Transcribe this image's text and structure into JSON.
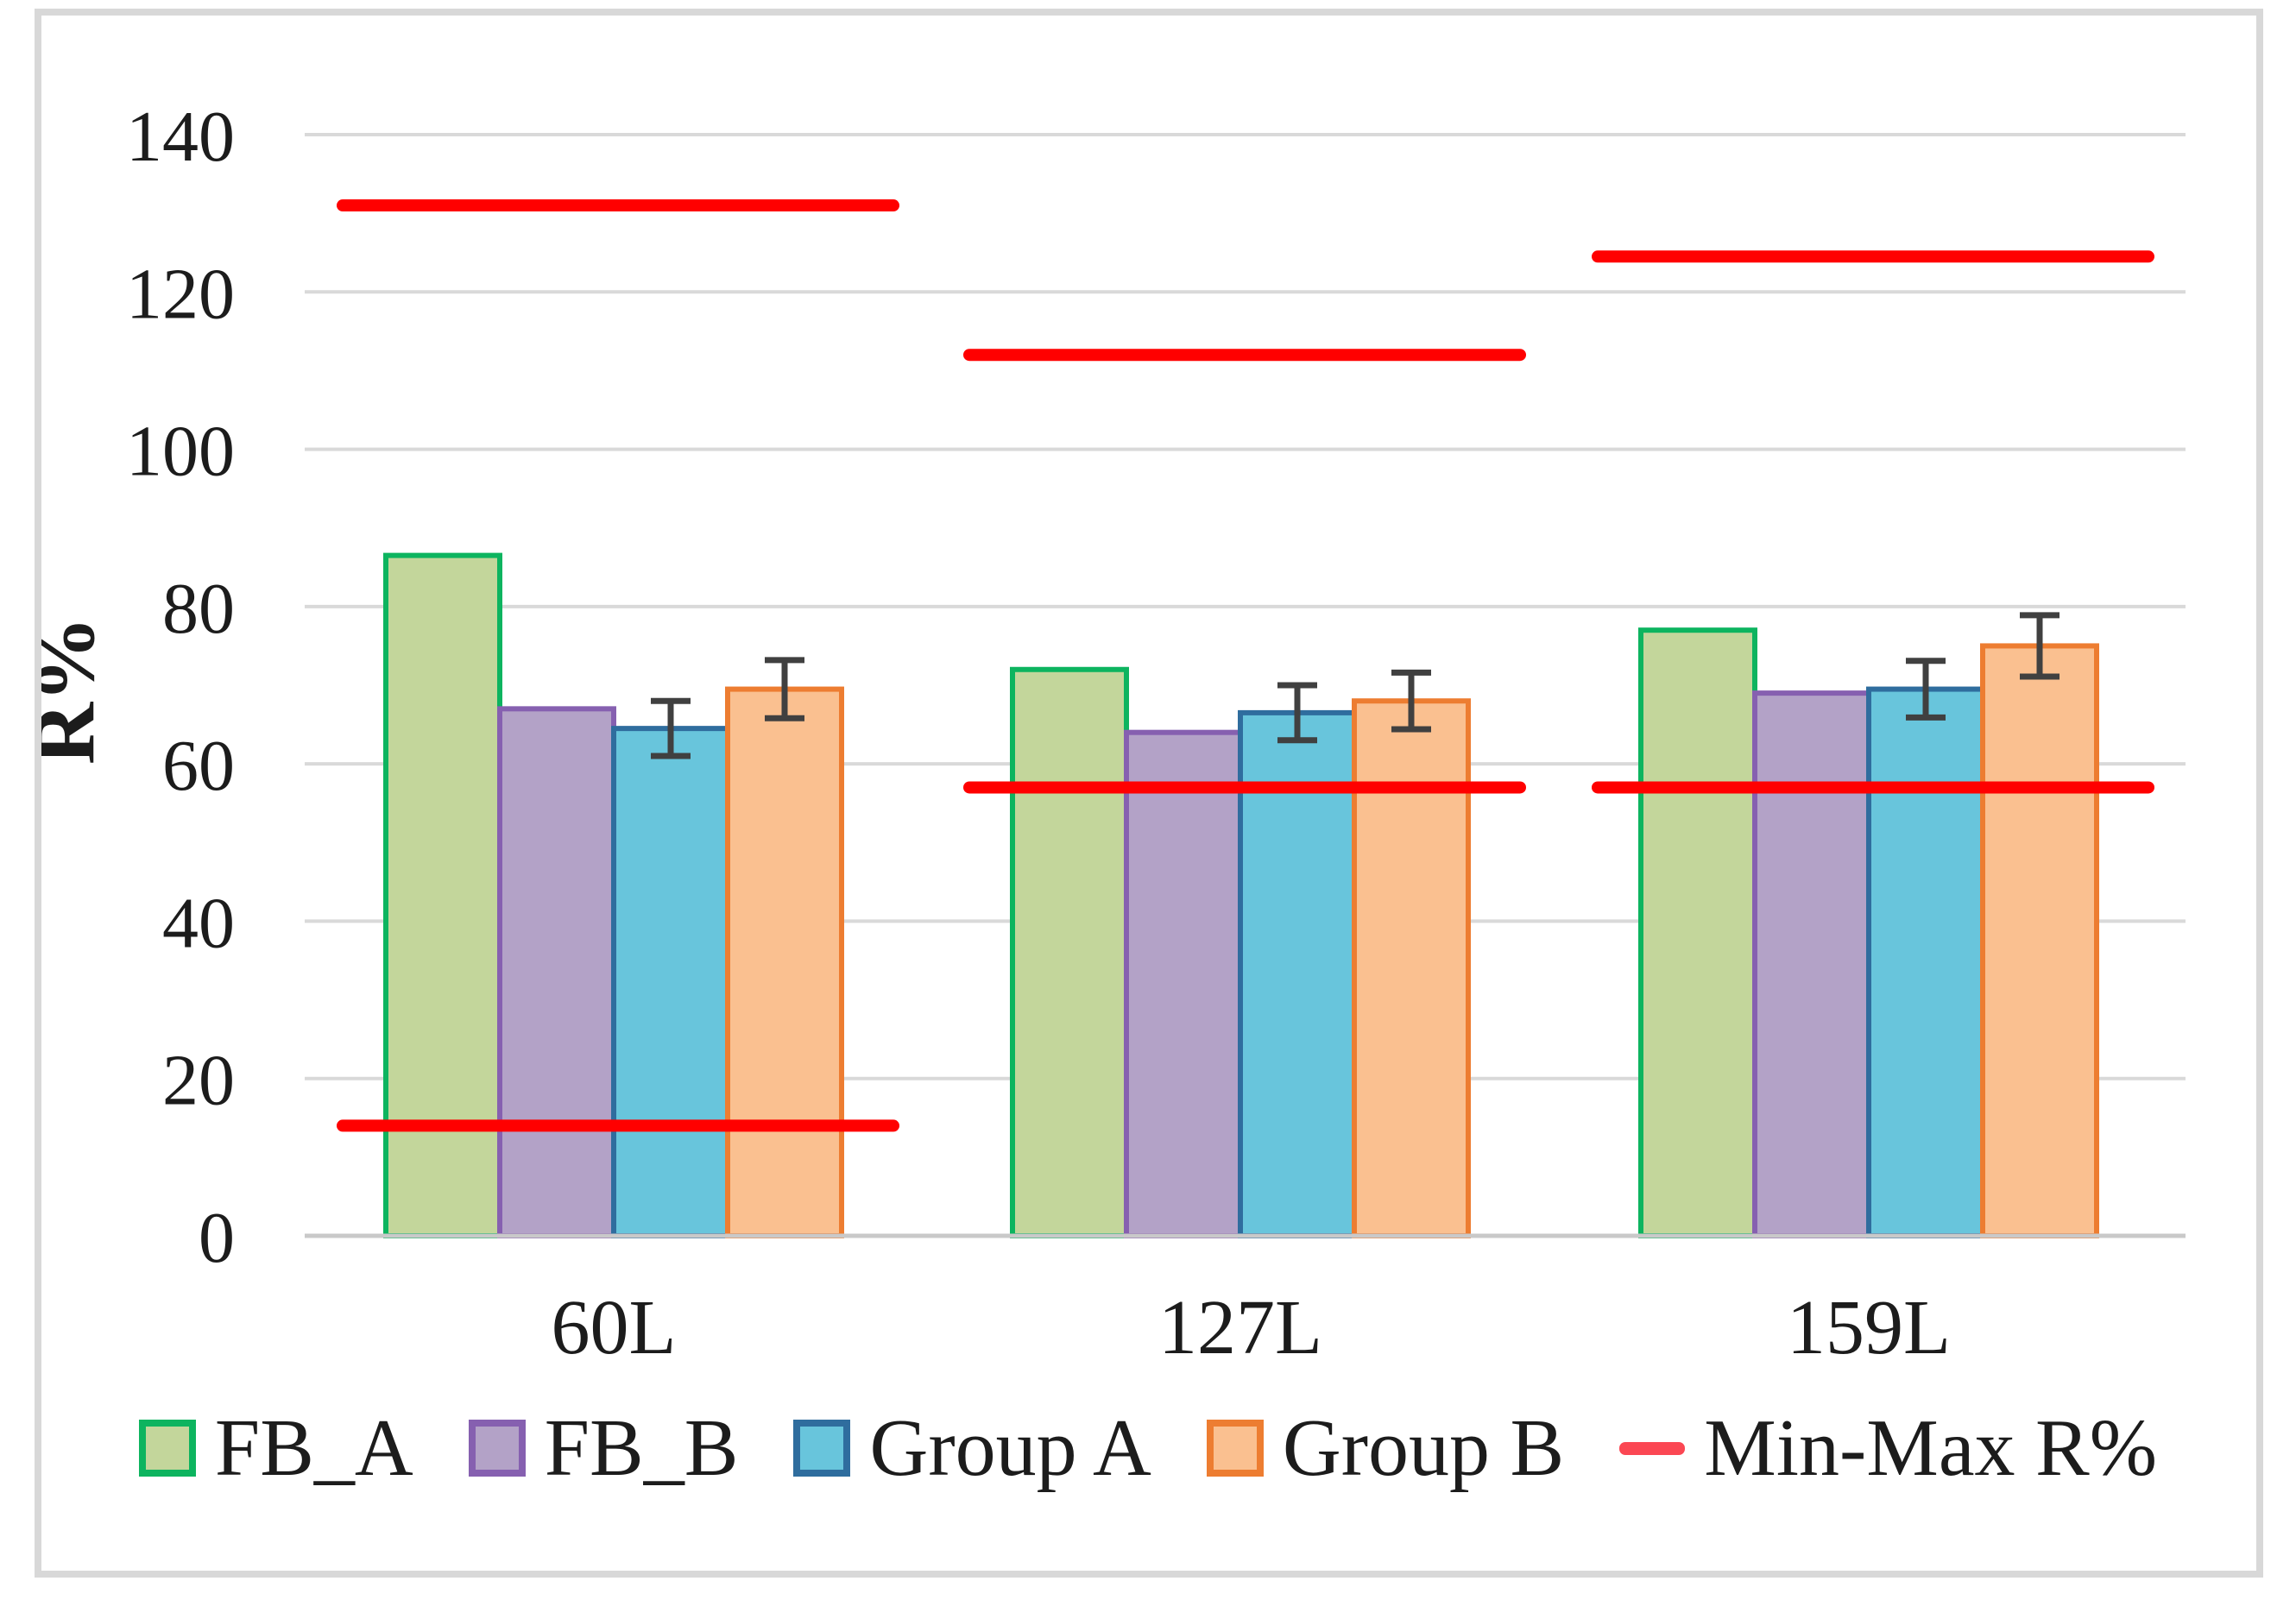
{
  "chart_data": {
    "type": "bar",
    "title": "",
    "xlabel": "",
    "ylabel": "R%",
    "ylim": [
      0,
      140
    ],
    "ytick_step": 20,
    "ytick_labels": [
      "0",
      "20",
      "40",
      "60",
      "80",
      "100",
      "120",
      "140"
    ],
    "categories": [
      "60L",
      "127L",
      "159L"
    ],
    "series": [
      {
        "name": "FB_A",
        "values": [
          86.5,
          72.0,
          77.0
        ],
        "errors": null,
        "fill": "#C3D69B",
        "border": "#0DB45F"
      },
      {
        "name": "FB_B",
        "values": [
          67.0,
          64.0,
          69.0
        ],
        "errors": null,
        "fill": "#B3A2C7",
        "border": "#8660B0"
      },
      {
        "name": "Group A",
        "values": [
          64.5,
          66.5,
          69.5
        ],
        "errors": [
          3.5,
          3.5,
          3.6
        ],
        "fill": "#68C5DC",
        "border": "#2F6D9E"
      },
      {
        "name": "Group B",
        "values": [
          69.5,
          68.0,
          75.0
        ],
        "errors": [
          3.7,
          3.6,
          3.9
        ],
        "fill": "#FAC090",
        "border": "#ED7D31"
      }
    ],
    "min_max_lines": {
      "name": "Min-Max R%",
      "color": "#FF0000",
      "max": [
        131.0,
        112.0,
        124.5
      ],
      "min": [
        14.0,
        57.0,
        57.0
      ]
    },
    "grid": true,
    "legend_position": "bottom"
  },
  "colors": {
    "background": "#FFFFFF",
    "frame": "#D8D8D8",
    "gridline": "#D9D9D9",
    "axis_line": "#C9C9C9",
    "error_bar": "#404040",
    "text": "#1C1C1C",
    "legend_dash": "#FB4753"
  }
}
